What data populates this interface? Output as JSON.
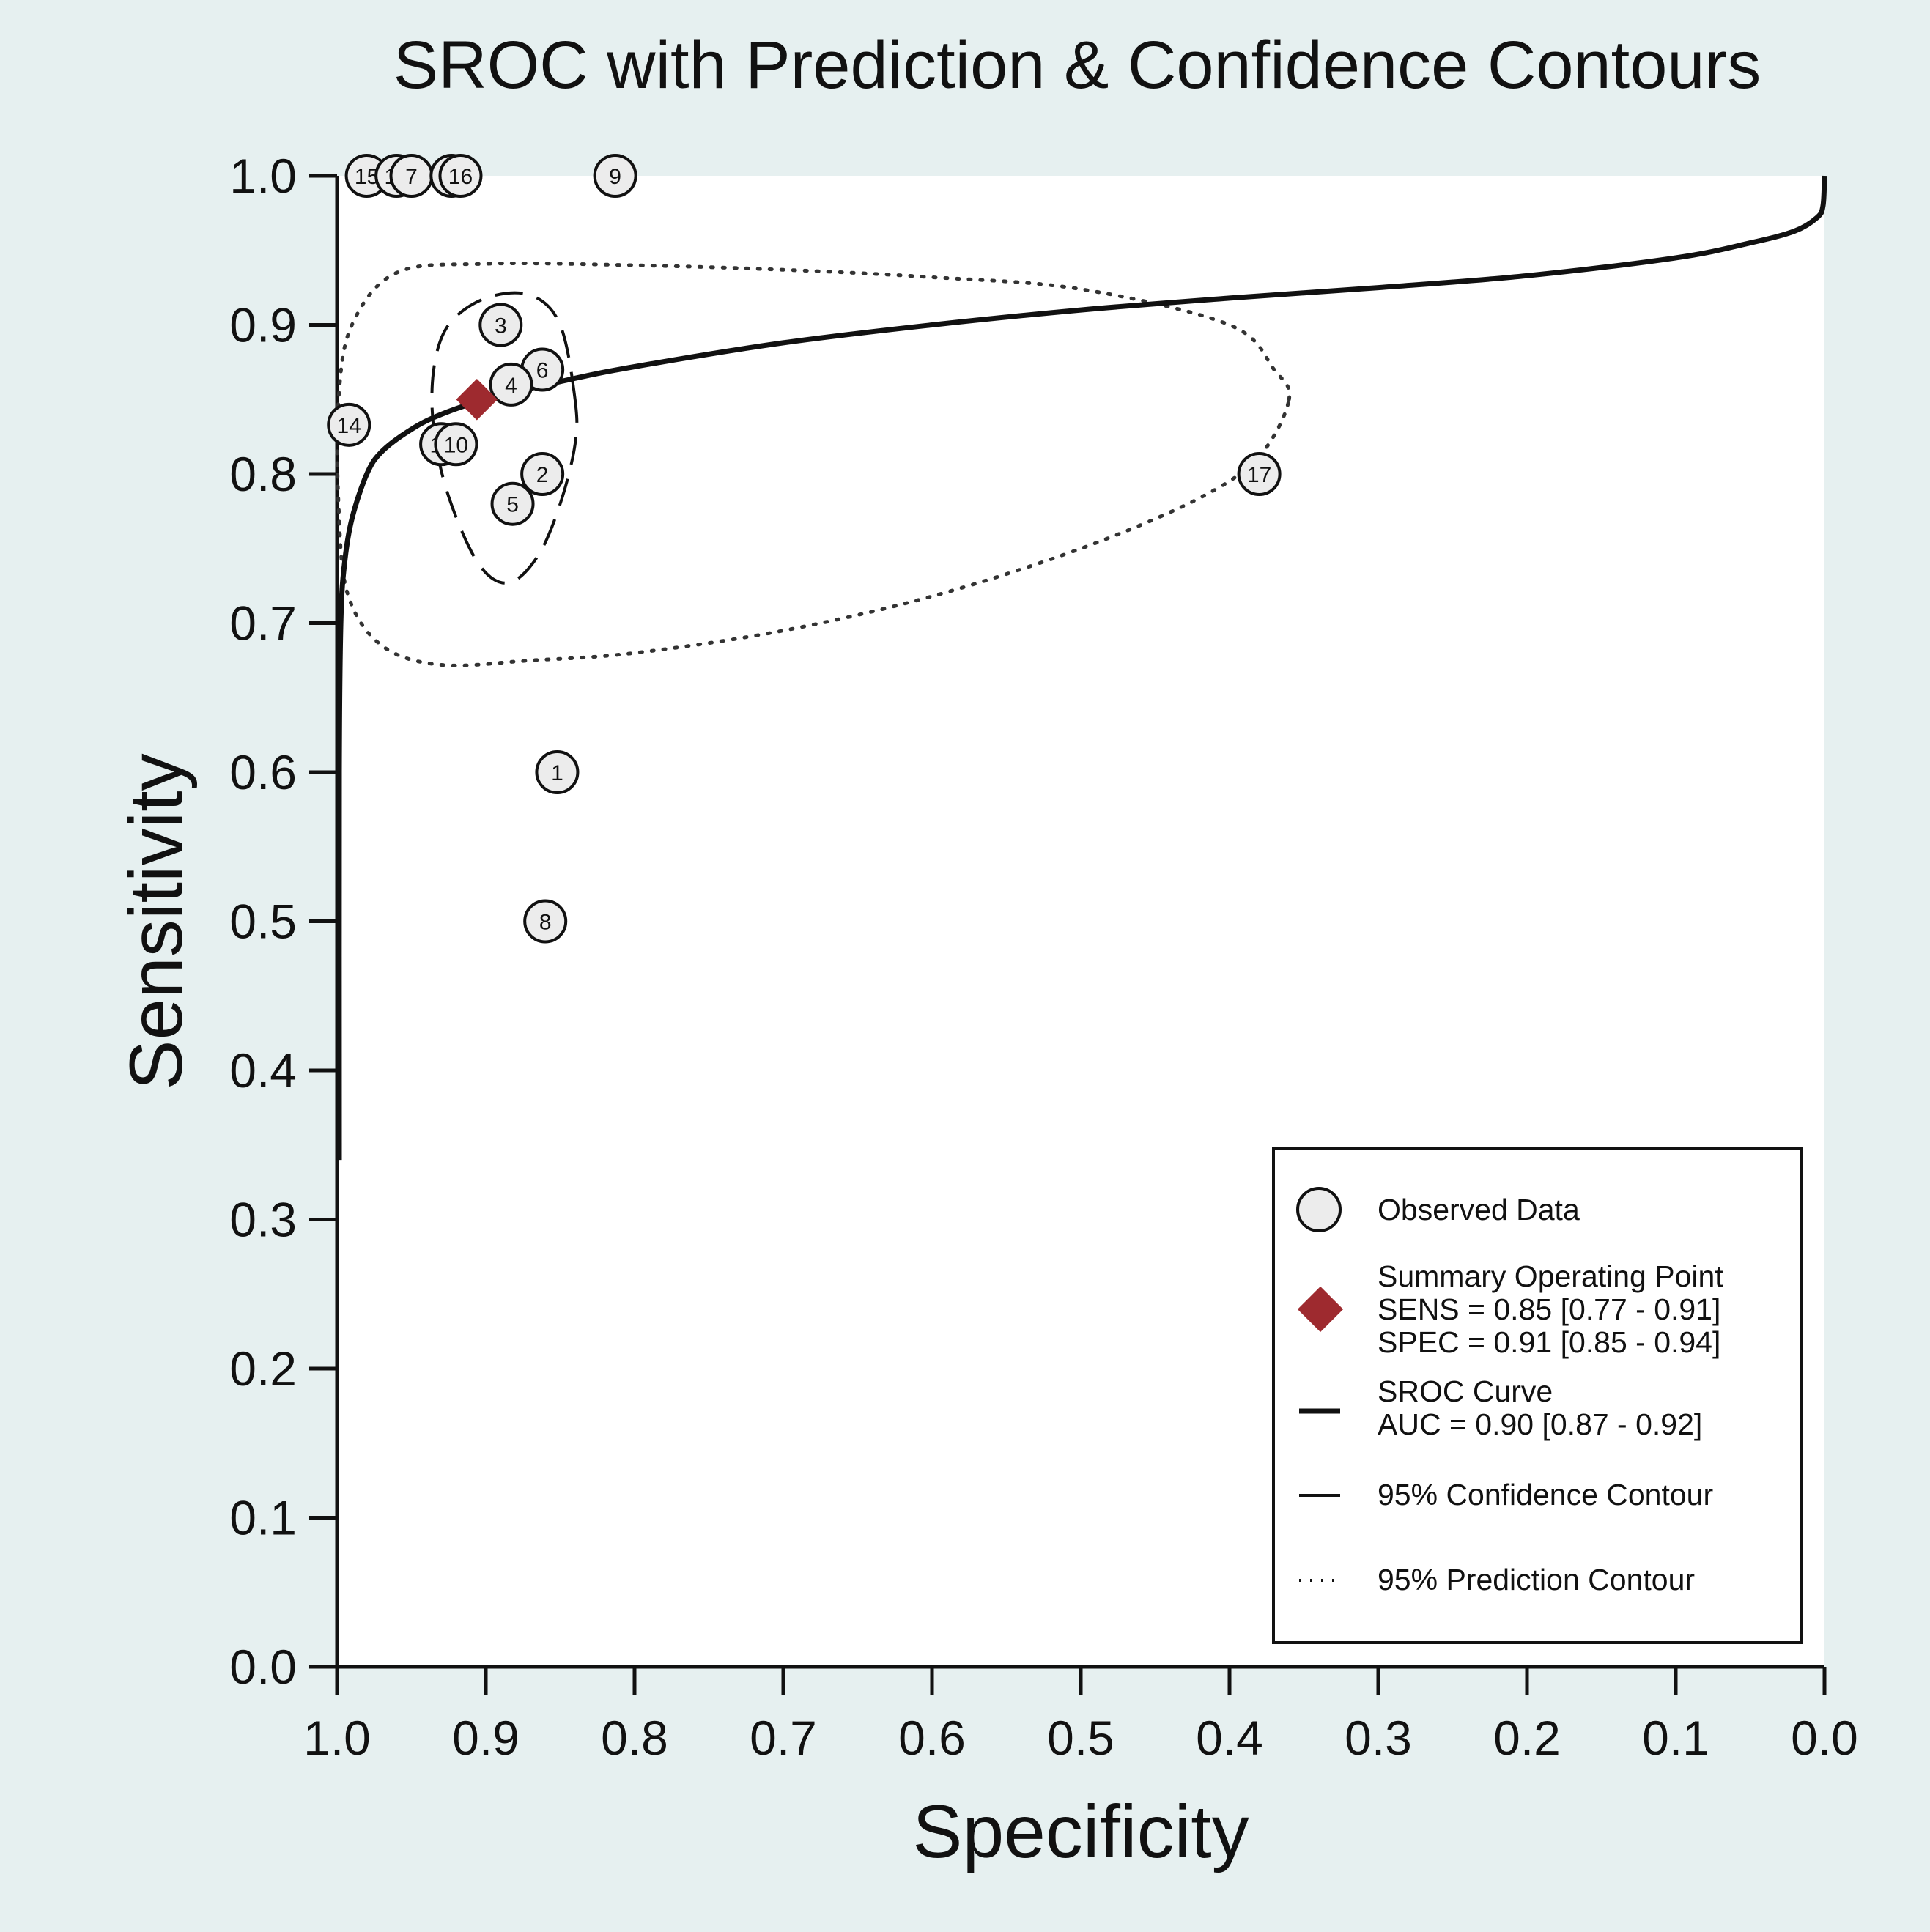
{
  "chart_data": {
    "type": "scatter",
    "title": "SROC with Prediction & Confidence Contours",
    "xlabel": "Specificity",
    "ylabel": "Sensitivity",
    "xlim": [
      1.0,
      0.0
    ],
    "ylim": [
      0.0,
      1.0
    ],
    "x_ticks": [
      "1.0",
      "0.9",
      "0.8",
      "0.7",
      "0.6",
      "0.5",
      "0.4",
      "0.3",
      "0.2",
      "0.1",
      "0.0"
    ],
    "y_ticks": [
      "0.0",
      "0.1",
      "0.2",
      "0.3",
      "0.4",
      "0.5",
      "0.6",
      "0.7",
      "0.8",
      "0.9",
      "1.0"
    ],
    "observed": [
      {
        "label": "15",
        "specificity": 0.98,
        "sensitivity": 1.0
      },
      {
        "label": "12",
        "specificity": 0.96,
        "sensitivity": 1.0
      },
      {
        "label": "7",
        "specificity": 0.95,
        "sensitivity": 1.0
      },
      {
        "label": "13",
        "specificity": 0.923,
        "sensitivity": 1.0
      },
      {
        "label": "16",
        "specificity": 0.917,
        "sensitivity": 1.0
      },
      {
        "label": "9",
        "specificity": 0.813,
        "sensitivity": 1.0
      },
      {
        "label": "3",
        "specificity": 0.89,
        "sensitivity": 0.9
      },
      {
        "label": "6",
        "specificity": 0.862,
        "sensitivity": 0.87
      },
      {
        "label": "4",
        "specificity": 0.883,
        "sensitivity": 0.86
      },
      {
        "label": "14",
        "specificity": 0.992,
        "sensitivity": 0.833
      },
      {
        "label": "11",
        "specificity": 0.93,
        "sensitivity": 0.82
      },
      {
        "label": "10",
        "specificity": 0.92,
        "sensitivity": 0.82
      },
      {
        "label": "2",
        "specificity": 0.862,
        "sensitivity": 0.8
      },
      {
        "label": "5",
        "specificity": 0.882,
        "sensitivity": 0.78
      },
      {
        "label": "17",
        "specificity": 0.38,
        "sensitivity": 0.8
      },
      {
        "label": "1",
        "specificity": 0.852,
        "sensitivity": 0.6
      },
      {
        "label": "8",
        "specificity": 0.86,
        "sensitivity": 0.5
      }
    ],
    "summary_point": {
      "specificity": 0.906,
      "sensitivity": 0.85
    },
    "sroc_curve": [
      [
        0.9985,
        0.34
      ],
      [
        0.9985,
        0.6
      ],
      [
        0.9975,
        0.7
      ],
      [
        0.995,
        0.74
      ],
      [
        0.99,
        0.77
      ],
      [
        0.98,
        0.8
      ],
      [
        0.97,
        0.815
      ],
      [
        0.95,
        0.83
      ],
      [
        0.93,
        0.84
      ],
      [
        0.9,
        0.85
      ],
      [
        0.85,
        0.862
      ],
      [
        0.8,
        0.872
      ],
      [
        0.7,
        0.888
      ],
      [
        0.6,
        0.9
      ],
      [
        0.5,
        0.91
      ],
      [
        0.4,
        0.918
      ],
      [
        0.3,
        0.925
      ],
      [
        0.2,
        0.933
      ],
      [
        0.1,
        0.945
      ],
      [
        0.05,
        0.955
      ],
      [
        0.02,
        0.963
      ],
      [
        0.005,
        0.972
      ],
      [
        0.001,
        0.98
      ],
      [
        0.0,
        1.0
      ]
    ],
    "confidence_contour": [
      [
        0.84,
        0.85
      ],
      [
        0.85,
        0.9
      ],
      [
        0.87,
        0.92
      ],
      [
        0.9,
        0.918
      ],
      [
        0.925,
        0.9
      ],
      [
        0.935,
        0.87
      ],
      [
        0.935,
        0.83
      ],
      [
        0.925,
        0.785
      ],
      [
        0.905,
        0.74
      ],
      [
        0.885,
        0.727
      ],
      [
        0.865,
        0.745
      ],
      [
        0.85,
        0.78
      ],
      [
        0.84,
        0.82
      ],
      [
        0.84,
        0.85
      ]
    ],
    "prediction_contour": [
      [
        0.36,
        0.85
      ],
      [
        0.37,
        0.87
      ],
      [
        0.4,
        0.9
      ],
      [
        0.5,
        0.924
      ],
      [
        0.6,
        0.932
      ],
      [
        0.7,
        0.937
      ],
      [
        0.8,
        0.94
      ],
      [
        0.9,
        0.941
      ],
      [
        0.96,
        0.935
      ],
      [
        0.99,
        0.9
      ],
      [
        0.999,
        0.85
      ],
      [
        0.999,
        0.78
      ],
      [
        0.993,
        0.72
      ],
      [
        0.97,
        0.685
      ],
      [
        0.93,
        0.672
      ],
      [
        0.87,
        0.675
      ],
      [
        0.8,
        0.68
      ],
      [
        0.7,
        0.695
      ],
      [
        0.6,
        0.718
      ],
      [
        0.5,
        0.75
      ],
      [
        0.42,
        0.784
      ],
      [
        0.38,
        0.812
      ],
      [
        0.36,
        0.85
      ]
    ],
    "legend": {
      "observed": "Observed Data",
      "summary_title": "Summary Operating Point",
      "summary_sens": "SENS = 0.85 [0.77 - 0.91]",
      "summary_spec": "SPEC = 0.91 [0.85 - 0.94]",
      "sroc_title": "SROC Curve",
      "sroc_auc": "AUC = 0.90 [0.87 - 0.92]",
      "confidence": "95% Confidence Contour",
      "prediction": "95% Prediction Contour"
    },
    "colors": {
      "page_bg": "#e6f0f0",
      "plot_bg": "#ffffff",
      "summary": "#9e2a2f",
      "line": "#111111",
      "marker_fill": "#ececec"
    }
  }
}
